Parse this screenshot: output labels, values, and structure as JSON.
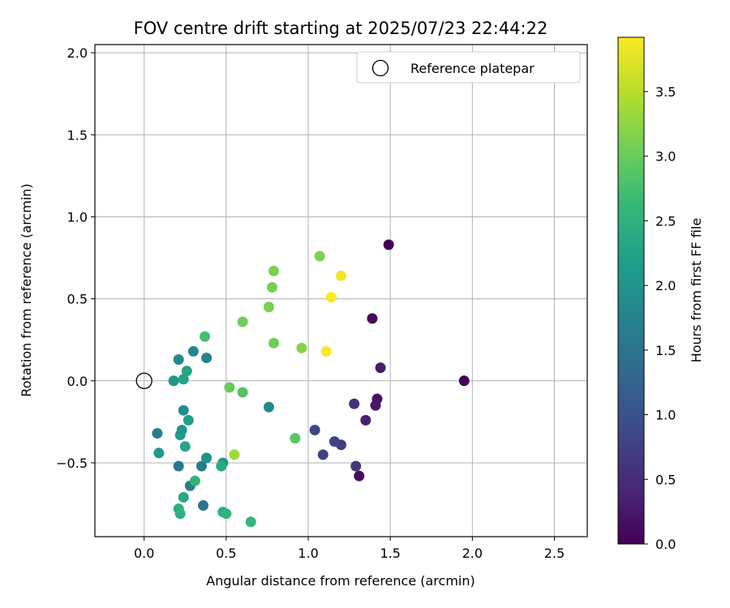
{
  "chart_data": {
    "type": "scatter",
    "title": "FOV centre drift starting at 2025/07/23 22:44:22",
    "xlabel": "Angular distance from reference (arcmin)",
    "ylabel": "Rotation from reference (arcmin)",
    "xlim": [
      -0.3,
      2.7
    ],
    "ylim": [
      -0.95,
      2.05
    ],
    "xticks": [
      0.0,
      0.5,
      1.0,
      1.5,
      2.0,
      2.5
    ],
    "yticks": [
      -0.5,
      0.0,
      0.5,
      1.0,
      1.5,
      2.0
    ],
    "xtick_labels": [
      "0.0",
      "0.5",
      "1.0",
      "1.5",
      "2.0",
      "2.5"
    ],
    "ytick_labels": [
      "−0.5",
      "0.0",
      "0.5",
      "1.0",
      "1.5",
      "2.0"
    ],
    "grid": true,
    "legend": {
      "position": "top-right",
      "entries": [
        "Reference platepar"
      ]
    },
    "reference_point": {
      "x": 0.0,
      "y": 0.0,
      "label": "Reference platepar"
    },
    "colorbar": {
      "label": "Hours from first FF file",
      "range": [
        0.0,
        3.92
      ],
      "ticks": [
        0.0,
        0.5,
        1.0,
        1.5,
        2.0,
        2.5,
        3.0,
        3.5
      ],
      "tick_labels": [
        "0.0",
        "0.5",
        "1.0",
        "1.5",
        "2.0",
        "2.5",
        "3.0",
        "3.5"
      ],
      "colormap": "viridis",
      "colormap_stops": [
        "#440154",
        "#482878",
        "#3e4989",
        "#31688e",
        "#26828e",
        "#1f9e89",
        "#35b779",
        "#6ece58",
        "#b5de2b",
        "#fde725"
      ]
    },
    "points": [
      {
        "x": 1.49,
        "y": 0.83,
        "h": 0.0
      },
      {
        "x": 1.95,
        "y": 0.0,
        "h": 0.05
      },
      {
        "x": 1.39,
        "y": 0.38,
        "h": 0.1
      },
      {
        "x": 1.31,
        "y": -0.58,
        "h": 0.15
      },
      {
        "x": 1.42,
        "y": -0.11,
        "h": 0.2
      },
      {
        "x": 1.41,
        "y": -0.15,
        "h": 0.25
      },
      {
        "x": 1.44,
        "y": 0.08,
        "h": 0.3
      },
      {
        "x": 1.35,
        "y": -0.24,
        "h": 0.35
      },
      {
        "x": 1.28,
        "y": -0.14,
        "h": 0.55
      },
      {
        "x": 1.29,
        "y": -0.52,
        "h": 0.65
      },
      {
        "x": 1.2,
        "y": -0.39,
        "h": 0.7
      },
      {
        "x": 1.09,
        "y": -0.45,
        "h": 0.75
      },
      {
        "x": 1.16,
        "y": -0.37,
        "h": 0.8
      },
      {
        "x": 1.04,
        "y": -0.3,
        "h": 0.85
      },
      {
        "x": 0.36,
        "y": -0.76,
        "h": 1.5
      },
      {
        "x": 0.21,
        "y": -0.52,
        "h": 1.55
      },
      {
        "x": 0.35,
        "y": -0.52,
        "h": 1.6
      },
      {
        "x": 0.28,
        "y": -0.64,
        "h": 1.65
      },
      {
        "x": 0.08,
        "y": -0.32,
        "h": 1.7
      },
      {
        "x": 0.38,
        "y": 0.14,
        "h": 1.75
      },
      {
        "x": 0.3,
        "y": 0.18,
        "h": 1.8
      },
      {
        "x": 0.21,
        "y": 0.13,
        "h": 1.85
      },
      {
        "x": 0.76,
        "y": -0.16,
        "h": 1.85
      },
      {
        "x": 0.24,
        "y": -0.18,
        "h": 1.9
      },
      {
        "x": 0.38,
        "y": -0.47,
        "h": 1.95
      },
      {
        "x": 0.48,
        "y": -0.5,
        "h": 2.0
      },
      {
        "x": 0.18,
        "y": 0.0,
        "h": 2.05
      },
      {
        "x": 0.23,
        "y": -0.3,
        "h": 2.1
      },
      {
        "x": 0.22,
        "y": -0.33,
        "h": 2.12
      },
      {
        "x": 0.09,
        "y": -0.44,
        "h": 2.15
      },
      {
        "x": 0.27,
        "y": -0.24,
        "h": 2.2
      },
      {
        "x": 0.24,
        "y": 0.01,
        "h": 2.25
      },
      {
        "x": 0.26,
        "y": 0.06,
        "h": 2.3
      },
      {
        "x": 0.25,
        "y": -0.4,
        "h": 2.3
      },
      {
        "x": 0.24,
        "y": -0.71,
        "h": 2.35
      },
      {
        "x": 0.47,
        "y": -0.52,
        "h": 2.4
      },
      {
        "x": 0.21,
        "y": -0.78,
        "h": 2.45
      },
      {
        "x": 0.22,
        "y": -0.81,
        "h": 2.5
      },
      {
        "x": 0.48,
        "y": -0.8,
        "h": 2.5
      },
      {
        "x": 0.5,
        "y": -0.81,
        "h": 2.55
      },
      {
        "x": 0.31,
        "y": -0.61,
        "h": 2.55
      },
      {
        "x": 0.65,
        "y": -0.86,
        "h": 2.6
      },
      {
        "x": 0.37,
        "y": 0.27,
        "h": 2.75
      },
      {
        "x": 0.6,
        "y": -0.07,
        "h": 2.85
      },
      {
        "x": 0.92,
        "y": -0.35,
        "h": 2.9
      },
      {
        "x": 0.52,
        "y": -0.04,
        "h": 3.0
      },
      {
        "x": 0.6,
        "y": 0.36,
        "h": 3.05
      },
      {
        "x": 0.79,
        "y": 0.23,
        "h": 3.05
      },
      {
        "x": 0.76,
        "y": 0.45,
        "h": 3.1
      },
      {
        "x": 0.78,
        "y": 0.57,
        "h": 3.1
      },
      {
        "x": 0.79,
        "y": 0.67,
        "h": 3.12
      },
      {
        "x": 1.07,
        "y": 0.76,
        "h": 3.15
      },
      {
        "x": 0.96,
        "y": 0.2,
        "h": 3.2
      },
      {
        "x": 0.55,
        "y": -0.45,
        "h": 3.35
      },
      {
        "x": 1.2,
        "y": 0.64,
        "h": 3.88
      },
      {
        "x": 1.14,
        "y": 0.51,
        "h": 3.9
      },
      {
        "x": 1.11,
        "y": 0.18,
        "h": 3.92
      }
    ]
  }
}
